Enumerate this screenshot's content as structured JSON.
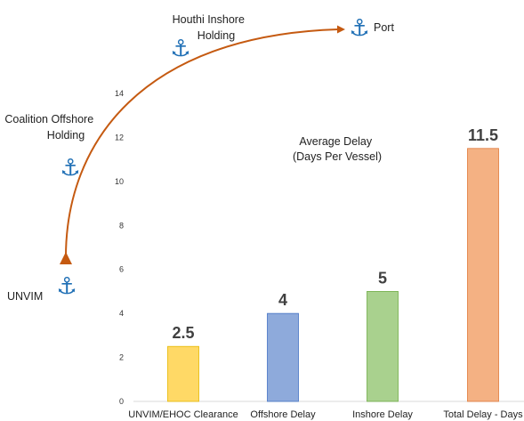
{
  "chart_data": {
    "type": "bar",
    "title": [
      "Average Delay",
      "(Days Per Vessel)"
    ],
    "categories": [
      "UNVIM/EHOC Clearance",
      "Offshore Delay",
      "Inshore Delay",
      "Total Delay - Days"
    ],
    "values": [
      2.5,
      4,
      5,
      11.5
    ],
    "data_labels": [
      "2.5",
      "4",
      "5",
      "11.5"
    ],
    "colors": [
      "#ffd966",
      "#8eaadb",
      "#a9d18e",
      "#f4b183"
    ],
    "border_colors": [
      "#e6b800",
      "#4472c4",
      "#70ad47",
      "#e07a3a"
    ],
    "ylim": [
      0,
      14
    ],
    "yticks": [
      0,
      2,
      4,
      6,
      8,
      10,
      12,
      14
    ],
    "xlabel": "",
    "ylabel": "",
    "grid": false,
    "legend": "none"
  },
  "route_diagram": {
    "nodes": [
      {
        "id": "unvim",
        "label": [
          "UNVIM"
        ],
        "icon": "anchor-icon"
      },
      {
        "id": "coalition",
        "label": [
          "Coalition Offshore",
          "Holding"
        ],
        "icon": "anchor-icon"
      },
      {
        "id": "houthi",
        "label": [
          "Houthi Inshore",
          "Holding"
        ],
        "icon": "anchor-icon"
      },
      {
        "id": "port",
        "label": [
          "Port"
        ],
        "icon": "anchor-icon"
      }
    ],
    "path_color": "#c55a11",
    "anchor_color": "#1f6fb5",
    "arrow_start_icon": "triangle-marker-icon",
    "arrow_end_icon": "arrowhead-icon"
  }
}
